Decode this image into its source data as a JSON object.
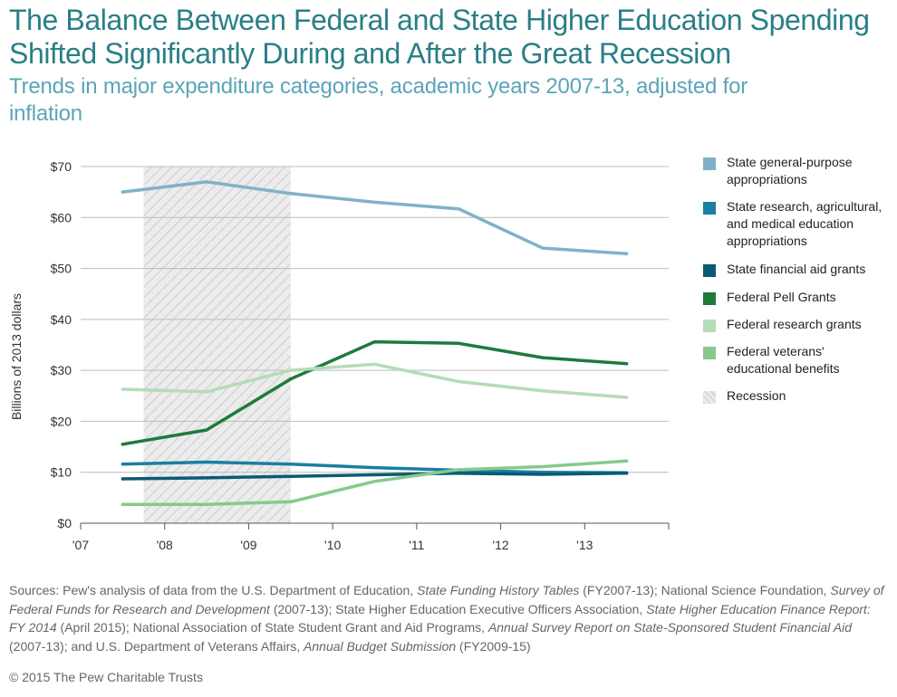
{
  "title": "The Balance Between Federal and State Higher Education Spending Shifted Significantly During and After the Great Recession",
  "subtitle": "Trends in major expenditure categories, academic years 2007-13, adjusted for inflation",
  "chart_data": {
    "type": "line",
    "ylabel": "Billions of 2013 dollars",
    "xlabel": "",
    "x_ticks": [
      "'07",
      "'08",
      "'09",
      "'10",
      "'11",
      "'12",
      "'13"
    ],
    "x": [
      2007.5,
      2008.5,
      2009.5,
      2010.5,
      2011.5,
      2012.5,
      2013.5
    ],
    "xlim": [
      2007,
      2014
    ],
    "ylim": [
      0,
      70
    ],
    "y_ticks": [
      0,
      10,
      20,
      30,
      40,
      50,
      60,
      70
    ],
    "y_tick_labels": [
      "$0",
      "$10",
      "$20",
      "$30",
      "$40",
      "$50",
      "$60",
      "$70"
    ],
    "grid": "horizontal",
    "recession": {
      "label": "Recession",
      "start": 2007.75,
      "end": 2009.5,
      "color": "#e3e3e3"
    },
    "series": [
      {
        "name": "State general-purpose appropriations",
        "color": "#7fb2c9",
        "values": [
          65.0,
          67.0,
          64.7,
          63.0,
          61.7,
          54.0,
          52.9
        ]
      },
      {
        "name": "State research, agricultural, and medical education appropriations",
        "color": "#1a7fa0",
        "values": [
          11.6,
          12.0,
          11.6,
          10.9,
          10.4,
          10.0,
          9.9
        ]
      },
      {
        "name": "State financial aid grants",
        "color": "#0a5a75",
        "values": [
          8.7,
          8.9,
          9.2,
          9.5,
          9.8,
          9.6,
          9.8
        ]
      },
      {
        "name": "Federal Pell Grants",
        "color": "#1e7a3c",
        "values": [
          15.5,
          18.3,
          28.3,
          35.6,
          35.3,
          32.5,
          31.3
        ]
      },
      {
        "name": "Federal research grants",
        "color": "#b5dcb8",
        "values": [
          26.3,
          25.8,
          30.0,
          31.2,
          27.8,
          26.0,
          24.7
        ]
      },
      {
        "name": "Federal veterans' educational benefits",
        "color": "#86c98c",
        "values": [
          3.7,
          3.7,
          4.2,
          8.2,
          10.5,
          11.1,
          12.2
        ]
      }
    ],
    "legend_position": "right"
  },
  "legend": {
    "items": [
      "State general-purpose appropriations",
      "State research, agricultural, and medical education appropriations",
      "State financial aid grants",
      "Federal Pell Grants",
      "Federal research grants",
      "Federal veterans' educational benefits",
      "Recession"
    ]
  },
  "sources": {
    "prefix": "Sources: Pew's analysis of data from the U.S. Department of Education, ",
    "t1": "State Funding History Tables",
    "s1": " (FY2007-13); National Science Foundation, ",
    "t2": "Survey of Federal Funds for Research and Development",
    "s2": " (2007-13); State Higher Education Executive Officers Association, ",
    "t3": "State Higher Education Finance Report: FY 2014",
    "s3": " (April 2015); National Association of State Student Grant and Aid Programs, ",
    "t4": "Annual Survey Report on State-Sponsored Student Financial Aid",
    "s4": " (2007-13); and U.S. Department of Veterans Affairs, ",
    "t5": "Annual Budget Submission",
    "s5": " (FY2009-15)"
  },
  "copyright": "© 2015 The Pew Charitable Trusts"
}
